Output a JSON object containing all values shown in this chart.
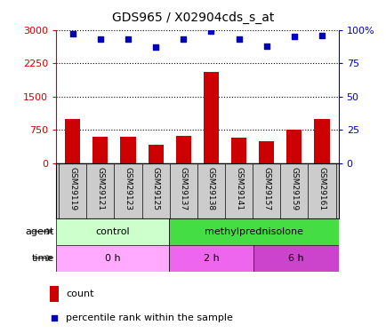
{
  "title": "GDS965 / X02904cds_s_at",
  "samples": [
    "GSM29119",
    "GSM29121",
    "GSM29123",
    "GSM29125",
    "GSM29137",
    "GSM29138",
    "GSM29141",
    "GSM29157",
    "GSM29159",
    "GSM29161"
  ],
  "counts": [
    1000,
    600,
    600,
    420,
    620,
    2050,
    580,
    490,
    750,
    1000
  ],
  "percentiles": [
    97,
    93,
    93,
    87,
    93,
    99,
    93,
    88,
    95,
    96
  ],
  "bar_color": "#cc0000",
  "dot_color": "#0000bb",
  "ylim_left": [
    0,
    3000
  ],
  "ylim_right": [
    0,
    100
  ],
  "yticks_left": [
    0,
    750,
    1500,
    2250,
    3000
  ],
  "ytick_labels_left": [
    "0",
    "750",
    "1500",
    "2250",
    "3000"
  ],
  "yticks_right": [
    0,
    25,
    50,
    75,
    100
  ],
  "ytick_labels_right": [
    "0",
    "25",
    "50",
    "75",
    "100%"
  ],
  "agent_segments": [
    {
      "label": "control",
      "start": 0,
      "end": 4,
      "color": "#ccffcc"
    },
    {
      "label": "methylprednisolone",
      "start": 4,
      "end": 10,
      "color": "#44dd44"
    }
  ],
  "time_segments": [
    {
      "label": "0 h",
      "start": 0,
      "end": 4,
      "color": "#ffaaff"
    },
    {
      "label": "2 h",
      "start": 4,
      "end": 7,
      "color": "#ee66ee"
    },
    {
      "label": "6 h",
      "start": 7,
      "end": 10,
      "color": "#cc44cc"
    }
  ],
  "legend_count_label": "count",
  "legend_pct_label": "percentile rank within the sample",
  "agent_row_label": "agent",
  "time_row_label": "time",
  "sample_label_bg": "#cccccc"
}
